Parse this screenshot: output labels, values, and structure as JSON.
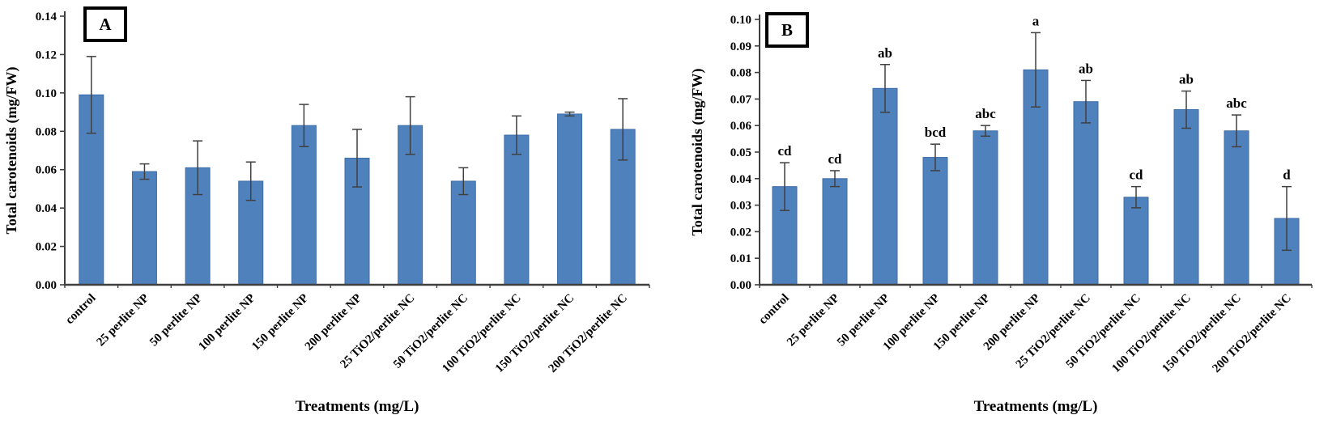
{
  "figure": {
    "y_axis_title": "Total carotenoids (mg/FW)",
    "x_axis_title": "Treatments (mg/L)",
    "colors": {
      "bar_fill": "#4f81bd",
      "bar_border": "#3d6da8",
      "error_bar": "#404040",
      "axis": "#404040",
      "text": "#000000",
      "background": "#ffffff"
    }
  },
  "chart_data": [
    {
      "type": "bar",
      "panel_label": "A",
      "title": "",
      "xlabel": "Treatments (mg/L)",
      "ylabel": "Total carotenoids (mg/FW)",
      "ylim": [
        0,
        0.14
      ],
      "ytick_step": 0.02,
      "grid": false,
      "legend": "none",
      "categories": [
        "control",
        "25 perlite NP",
        "50 perlite NP",
        "100 perlite NP",
        "150 perlite NP",
        "200 perlite NP",
        "25 TiO2/perlite NC",
        "50 TiO2/perlite NC",
        "100 TiO2/perlite NC",
        "150 TiO2/perlite NC",
        "200 TiO2/perlite NC"
      ],
      "values": [
        0.099,
        0.059,
        0.061,
        0.054,
        0.083,
        0.066,
        0.083,
        0.054,
        0.078,
        0.089,
        0.081
      ],
      "errors": [
        0.02,
        0.004,
        0.014,
        0.01,
        0.011,
        0.015,
        0.015,
        0.007,
        0.01,
        0.001,
        0.016
      ],
      "letters": []
    },
    {
      "type": "bar",
      "panel_label": "B",
      "title": "",
      "xlabel": "Treatments (mg/L)",
      "ylabel": "Total carotenoids (mg/FW)",
      "ylim": [
        0,
        0.1
      ],
      "ytick_step": 0.01,
      "grid": false,
      "legend": "none",
      "categories": [
        "control",
        "25 perlite NP",
        "50 perlite NP",
        "100 perlite NP",
        "150 perlite NP",
        "200 perlite NP",
        "25 TiO2/perlite NC",
        "50 TiO2/perlite NC",
        "100 TiO2/perlite NC",
        "150 TiO2/perlite NC",
        "200 TiO2/perlite NC"
      ],
      "values": [
        0.037,
        0.04,
        0.074,
        0.048,
        0.058,
        0.081,
        0.069,
        0.033,
        0.066,
        0.058,
        0.025
      ],
      "errors": [
        0.009,
        0.003,
        0.009,
        0.005,
        0.002,
        0.014,
        0.008,
        0.004,
        0.007,
        0.006,
        0.012
      ],
      "letters": [
        "cd",
        "cd",
        "ab",
        "bcd",
        "abc",
        "a",
        "ab",
        "cd",
        "ab",
        "abc",
        "d"
      ]
    }
  ]
}
